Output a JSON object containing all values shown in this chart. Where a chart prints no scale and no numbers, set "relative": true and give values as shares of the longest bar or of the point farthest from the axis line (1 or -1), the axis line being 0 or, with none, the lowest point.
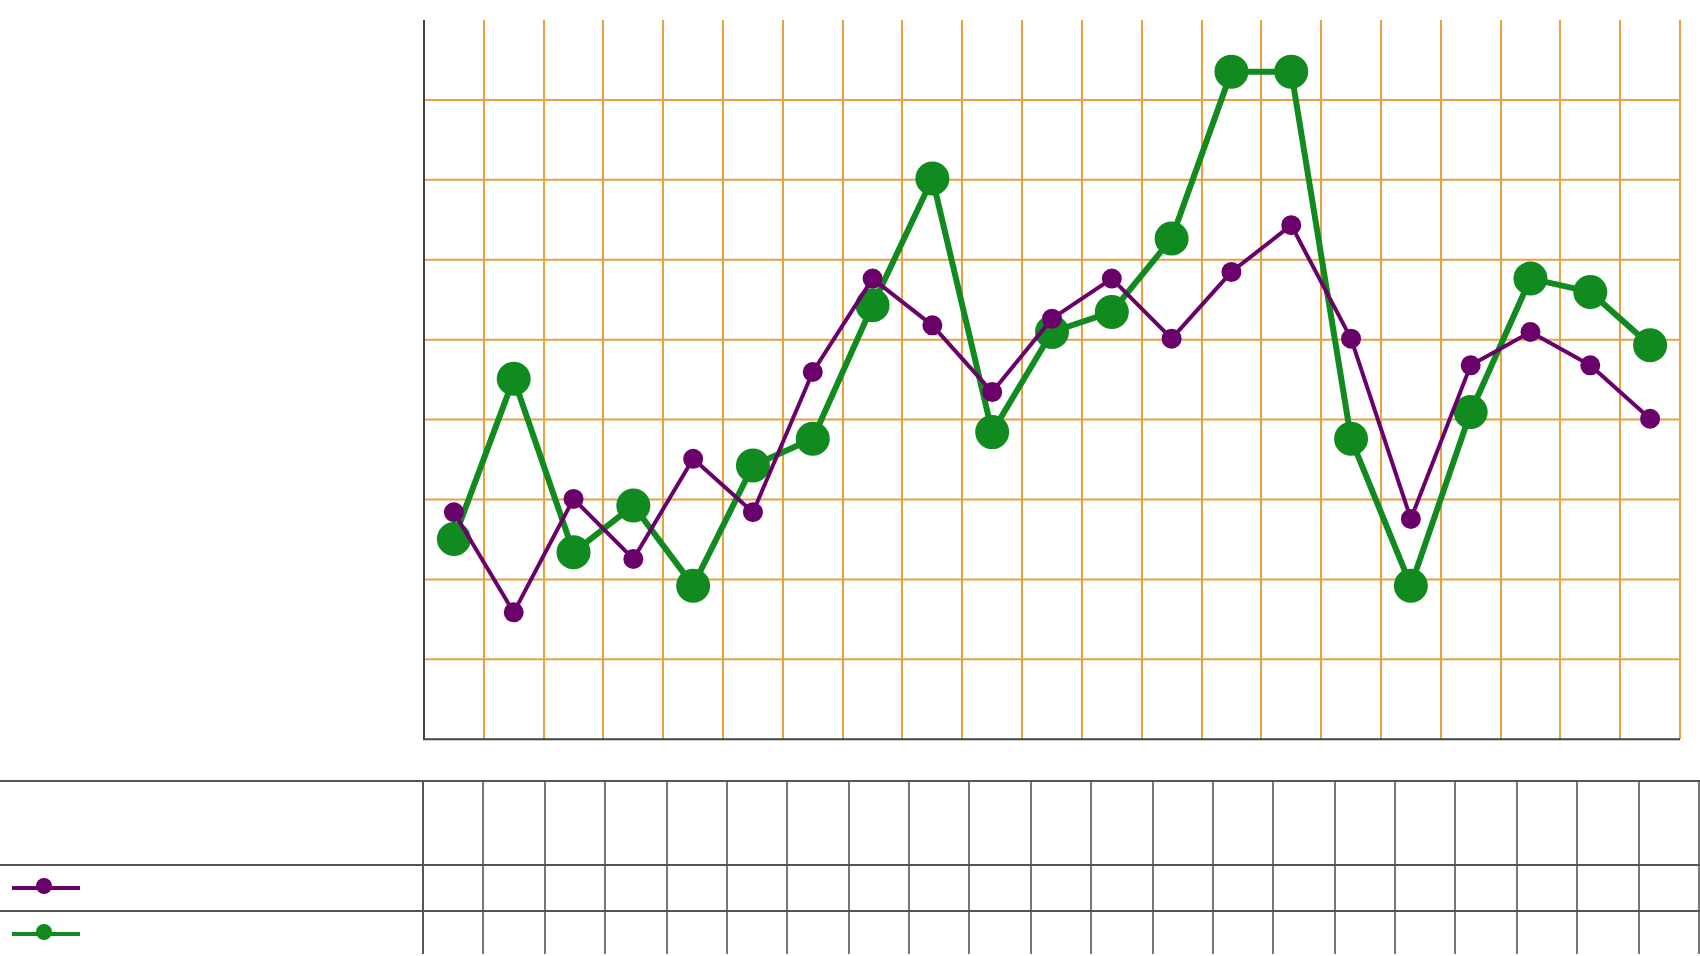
{
  "chart_data": {
    "type": "line",
    "relative": true,
    "categories": [
      null,
      null,
      null,
      null,
      null,
      null,
      null,
      null,
      null,
      null,
      null,
      null,
      null,
      null,
      null,
      null,
      null,
      null,
      null,
      null,
      null
    ],
    "series": [
      {
        "color": "#6a006a",
        "values": [
          0.34,
          0.19,
          0.36,
          0.27,
          0.42,
          0.34,
          0.55,
          0.69,
          0.62,
          0.52,
          0.63,
          0.69,
          0.6,
          0.7,
          0.77,
          0.6,
          0.33,
          0.56,
          0.61,
          0.56,
          0.48
        ]
      },
      {
        "color": "#118a1f",
        "values": [
          0.3,
          0.54,
          0.28,
          0.35,
          0.23,
          0.41,
          0.45,
          0.65,
          0.84,
          0.46,
          0.61,
          0.64,
          0.75,
          1,
          1,
          0.45,
          0.23,
          0.49,
          0.69,
          0.67,
          0.59
        ]
      }
    ],
    "grid": true,
    "marker": "circle",
    "line_style": "solid"
  }
}
